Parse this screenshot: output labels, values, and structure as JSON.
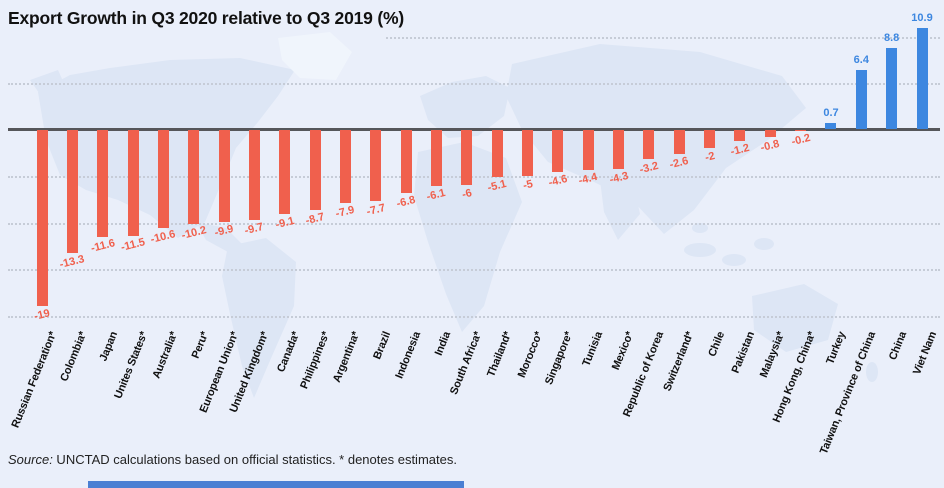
{
  "chart_data": {
    "type": "bar",
    "title": "Export Growth in Q3 2020 relative to Q3 2019 (%)",
    "categories": [
      "Russian Federation*",
      "Colombia*",
      "Japan",
      "Unites States*",
      "Australia*",
      "Peru*",
      "European Union*",
      "United Kingdom*",
      "Canada*",
      "Philippines*",
      "Argentina*",
      "Brazil",
      "Indonesia",
      "India",
      "South Africa*",
      "Thailand*",
      "Morocco*",
      "Singapore*",
      "Tunisia",
      "Mexico*",
      "Republic of Korea",
      "Switzerland*",
      "Chile",
      "Pakistan",
      "Malaysia*",
      "Hong Kong, China*",
      "Turkey",
      "Taiwan, Province of China",
      "China",
      "Viet Nam"
    ],
    "values": [
      -19,
      -13.3,
      -11.6,
      -11.5,
      -10.6,
      -10.2,
      -9.9,
      -9.7,
      -9.1,
      -8.7,
      -7.9,
      -7.7,
      -6.8,
      -6.1,
      -6,
      -5.1,
      -5,
      -4.6,
      -4.4,
      -4.3,
      -3.2,
      -2.6,
      -2,
      -1.2,
      -0.8,
      -0.2,
      0.7,
      6.4,
      8.8,
      10.9
    ],
    "value_labels": [
      "-19",
      "-13.3",
      "-11.6",
      "-11.5",
      "-10.6",
      "-10.2",
      "-9.9",
      "-9.7",
      "-9.1",
      "-8.7",
      "-7.9",
      "-7.7",
      "-6.8",
      "-6.1",
      "-6",
      "-5.1",
      "-5",
      "-4.6",
      "-4.4",
      "-4.3",
      "-3.2",
      "-2.6",
      "-2",
      "-1.2",
      "-0.8",
      "-0.2",
      "0.7",
      "6.4",
      "8.8",
      "10.9"
    ],
    "xlabel": "",
    "ylabel": "",
    "ylim": [
      -21,
      12
    ],
    "grid": true,
    "grid_step": 5,
    "legend": "none",
    "colors": {
      "negative_bar": "#F0604D",
      "positive_bar": "#3D87E0",
      "axis_line": "#55565A",
      "background": "#EAEFFA",
      "map_silhouette": "#DDE6F5"
    }
  },
  "footer": {
    "source_label": "Source:",
    "source_text": " UNCTAD calculations based on official statistics. * denotes estimates.",
    "strip_color": "#4A7FD3"
  }
}
